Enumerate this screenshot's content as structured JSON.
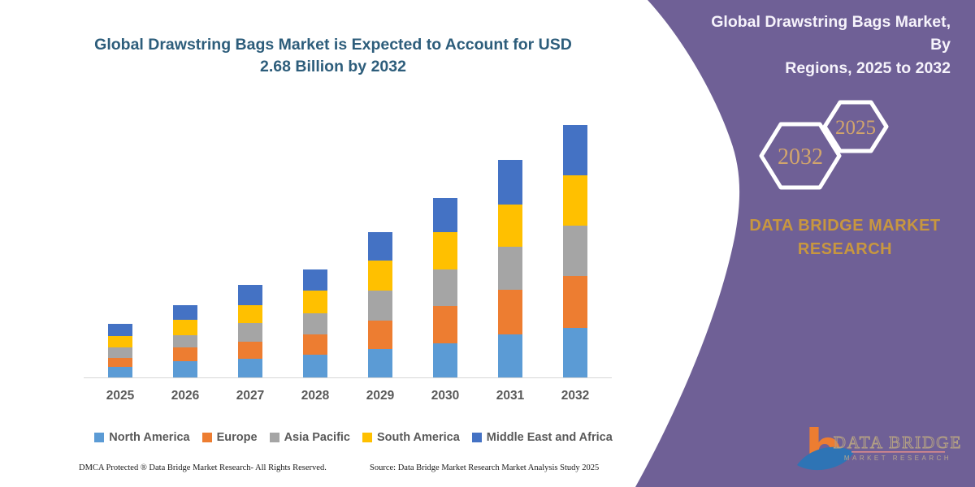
{
  "chart": {
    "title_line1": "Global Drawstring Bags Market is Expected to Account for USD",
    "title_line2": "2.68 Billion by 2032",
    "title_color": "#2d5d7b"
  },
  "chart_data": {
    "type": "bar",
    "stacked": true,
    "title": "Global Drawstring Bags Market is Expected to Account for USD 2.68 Billion by 2032",
    "unit": "USD Billion",
    "categories": [
      "2025",
      "2026",
      "2027",
      "2028",
      "2029",
      "2030",
      "2031",
      "2032"
    ],
    "series": [
      {
        "name": "North America",
        "color": "#5B9BD5",
        "values": [
          0.11,
          0.17,
          0.2,
          0.24,
          0.3,
          0.36,
          0.46,
          0.53
        ]
      },
      {
        "name": "Europe",
        "color": "#ED7D31",
        "values": [
          0.1,
          0.15,
          0.18,
          0.22,
          0.3,
          0.4,
          0.47,
          0.55
        ]
      },
      {
        "name": "Asia Pacific",
        "color": "#A5A5A5",
        "values": [
          0.11,
          0.13,
          0.2,
          0.22,
          0.32,
          0.39,
          0.46,
          0.53
        ]
      },
      {
        "name": "South America",
        "color": "#FFC000",
        "values": [
          0.12,
          0.16,
          0.19,
          0.24,
          0.32,
          0.39,
          0.45,
          0.54
        ]
      },
      {
        "name": "Middle East and Africa",
        "color": "#4472C4",
        "values": [
          0.13,
          0.16,
          0.21,
          0.23,
          0.3,
          0.37,
          0.47,
          0.53
        ]
      }
    ],
    "totals_by_year": [
      0.57,
      0.77,
      0.98,
      1.15,
      1.54,
      1.91,
      2.31,
      2.68
    ],
    "annotation": "Total for 2032 = USD 2.68 Billion",
    "y_axis_visible": false,
    "x_axis_visible": true,
    "grid": false,
    "legend_position": "bottom"
  },
  "footer": {
    "dmca": "DMCA Protected ® Data Bridge Market Research-  All Rights Reserved.",
    "source": "Source: Data Bridge Market Research  Market Analysis Study 2025"
  },
  "panel": {
    "bg_color": "#6f6096",
    "title_line1": "Global Drawstring Bags Market, By",
    "title_line2": "Regions, 2025 to 2032",
    "hex_large_label": "2032",
    "hex_small_label": "2025",
    "hex_text_color": "#d2a56c",
    "hex_outline_color": "#ffffff",
    "brand_line1": "DATA BRIDGE MARKET",
    "brand_line2": "RESEARCH",
    "brand_color": "#c8973f"
  },
  "logo": {
    "mark_letter": "b",
    "mark_color": "#ED7D31",
    "swoosh_color": "#2E74B5",
    "text_main": "DATA BRIDGE",
    "text_main_color": "#b3a084",
    "underline_color": "#de8c8c",
    "text_sub": "MARKET RESEARCH",
    "text_sub_color": "#b8a78d"
  }
}
